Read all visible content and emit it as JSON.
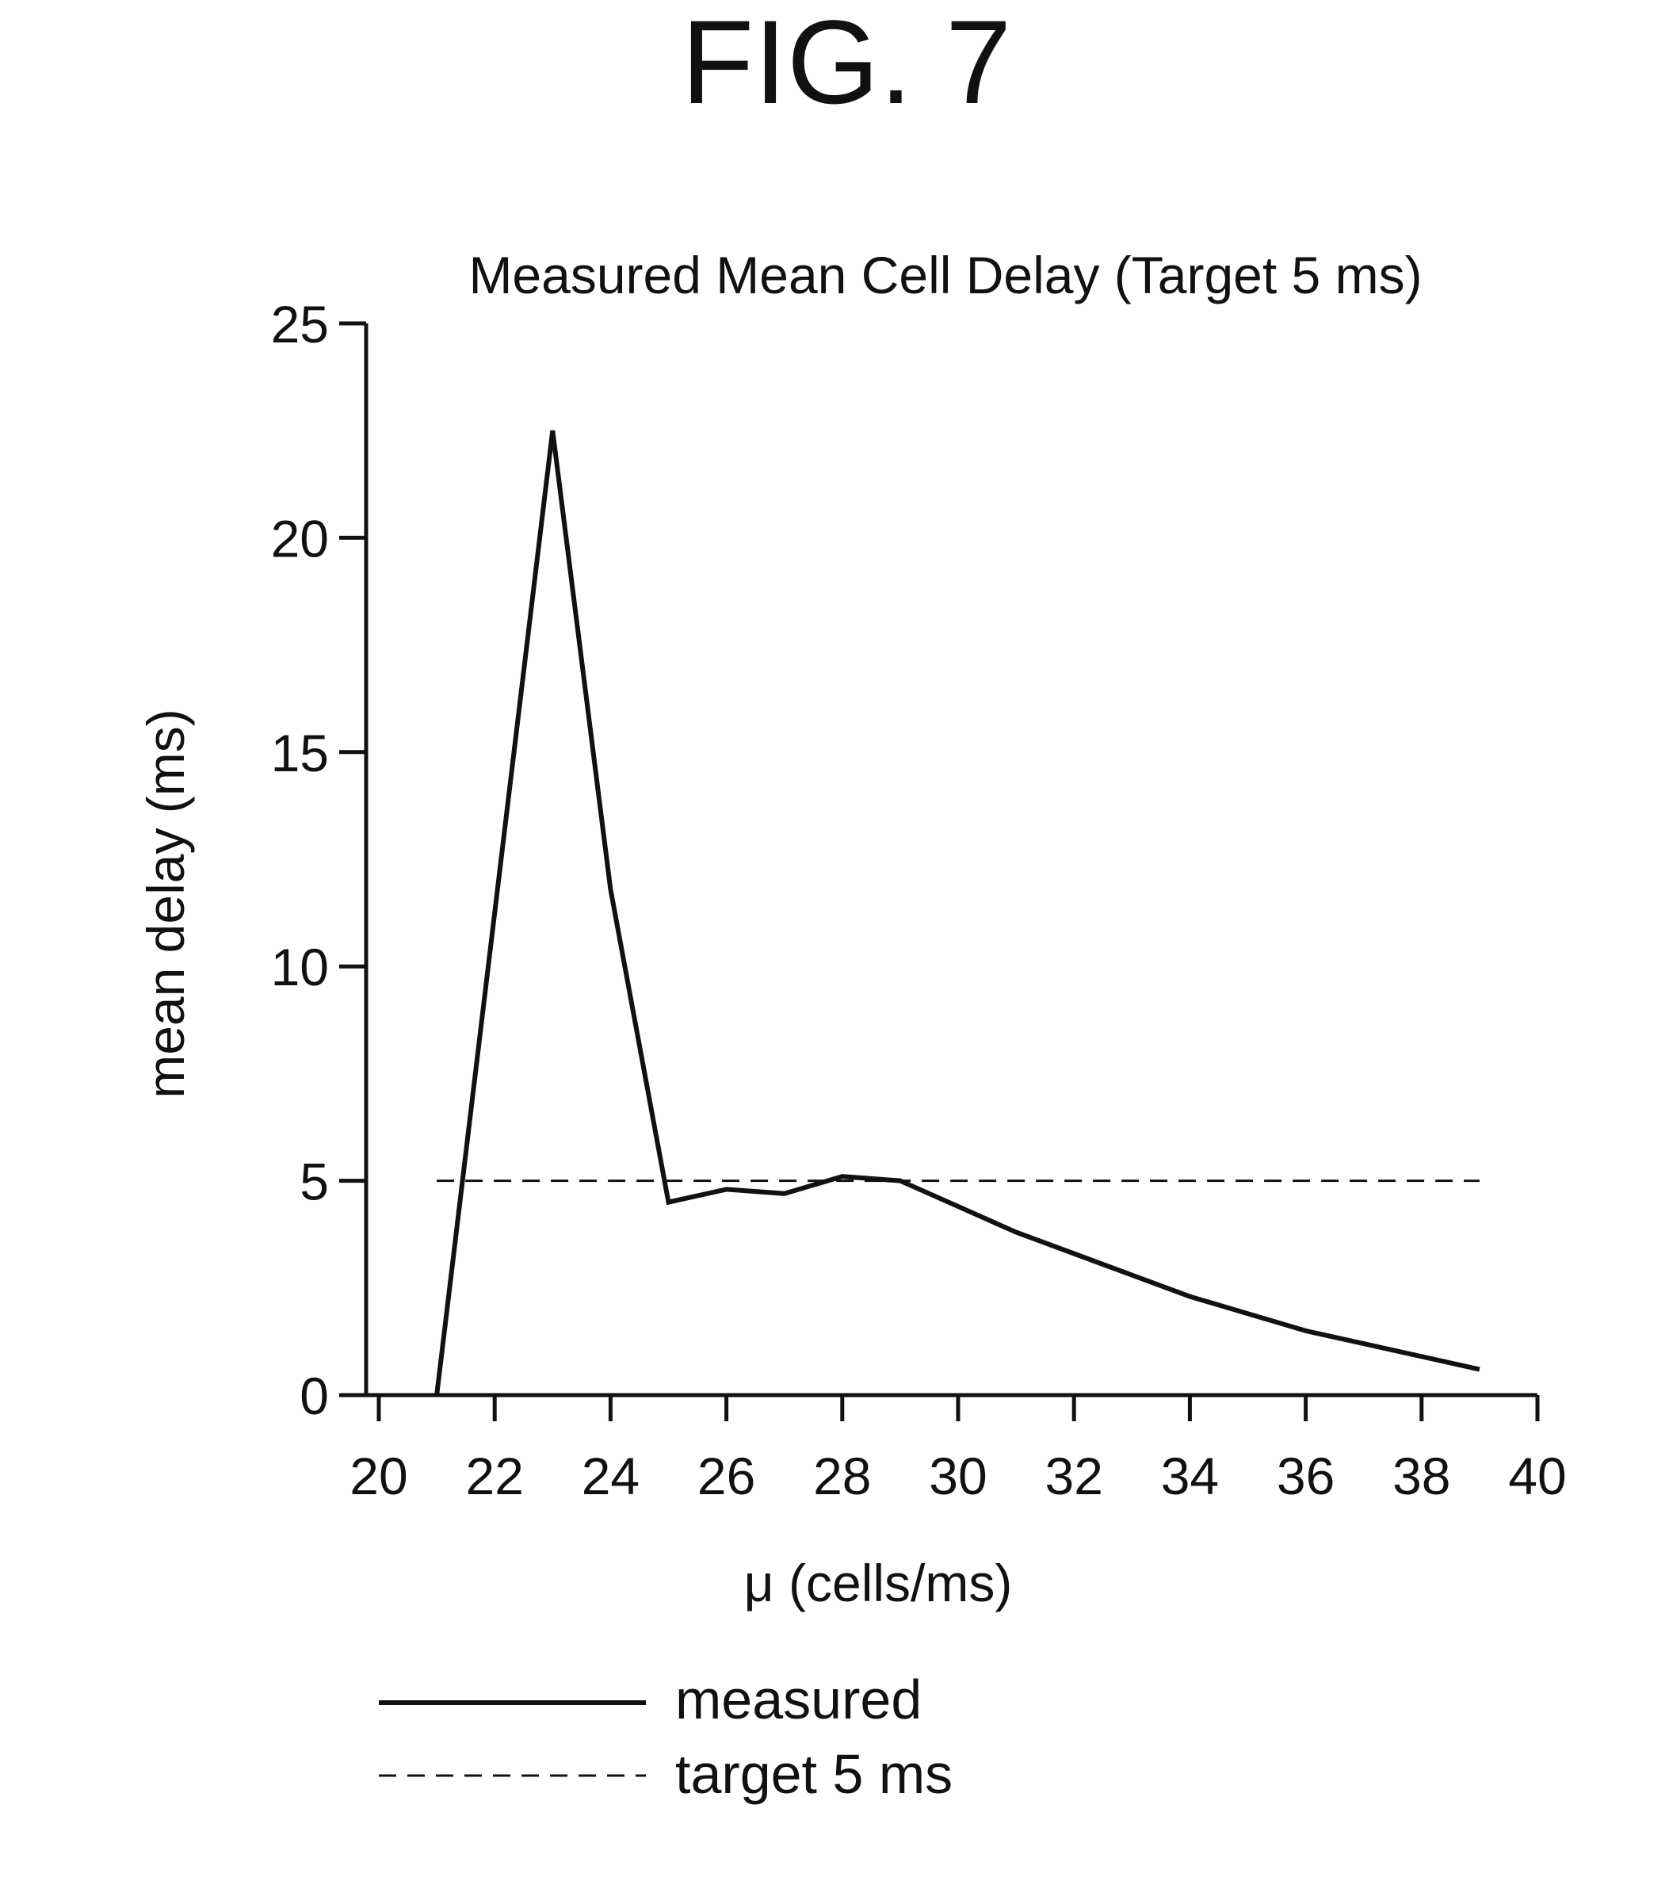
{
  "figure_label": "FIG. 7",
  "chart_data": {
    "type": "line",
    "title": "Measured Mean Cell Delay (Target 5 ms)",
    "xlabel": "μ (cells/ms)",
    "ylabel": "mean delay (ms)",
    "xlim": [
      20,
      40
    ],
    "ylim": [
      0,
      25
    ],
    "xticks": [
      20,
      22,
      24,
      26,
      28,
      30,
      32,
      34,
      36,
      38,
      40
    ],
    "yticks": [
      0,
      5,
      10,
      15,
      20,
      25
    ],
    "grid": false,
    "legend_position": "bottom",
    "series": [
      {
        "name": "measured",
        "style": "solid",
        "x": [
          21,
          23,
          24,
          25,
          26,
          27,
          28,
          29,
          30,
          31,
          32,
          33,
          34,
          35,
          36,
          37,
          38,
          39
        ],
        "y": [
          0,
          22.5,
          11.8,
          4.5,
          4.8,
          4.7,
          5.1,
          5.0,
          4.4,
          3.8,
          3.3,
          2.8,
          2.3,
          1.9,
          1.5,
          1.2,
          0.9,
          0.6
        ]
      },
      {
        "name": "target 5 ms",
        "style": "dashed",
        "x": [
          21,
          39
        ],
        "y": [
          5,
          5
        ]
      }
    ],
    "legend": [
      {
        "label": "measured",
        "style": "solid"
      },
      {
        "label": "target 5 ms",
        "style": "dashed"
      }
    ]
  }
}
